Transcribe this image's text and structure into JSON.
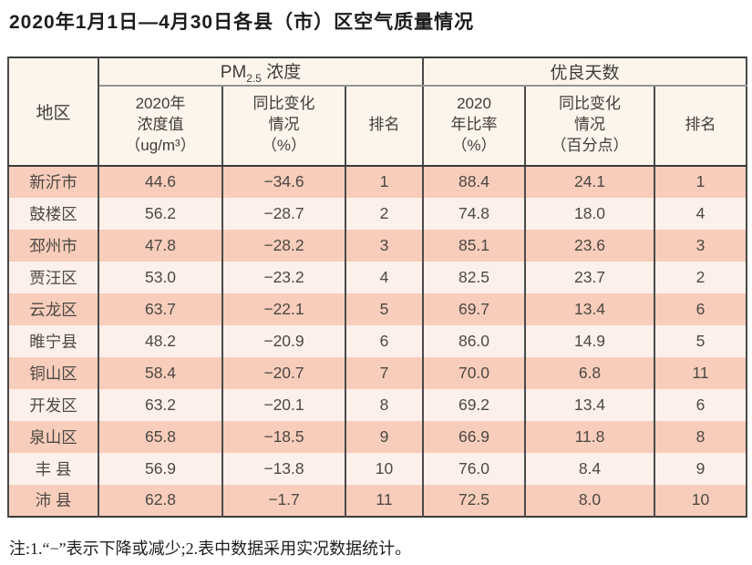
{
  "page": {
    "title": "2020年1月1日—4月30日各县（市）区空气质量情况",
    "note": "注:1.“−”表示下降或减少;2.表中数据采用实况数据统计。"
  },
  "colors": {
    "row_salmon": "#f8cdbb",
    "row_light": "#fdf0eb",
    "header_bg": "#fdf5ec",
    "border_dark": "#3a3a3a",
    "border_gray": "#949494",
    "text_main": "#4c4844"
  },
  "table": {
    "header": {
      "region": "地区",
      "pm_group": {
        "base": "PM",
        "sub": "2.5",
        "rest": " 浓度"
      },
      "good_group": "优良天数",
      "sub_headers": {
        "pm_value": "2020年\n浓度值\n（ug/m³）",
        "pm_change": "同比变化\n情况\n（%）",
        "pm_rank": "排名",
        "good_ratio": "2020\n年比率\n（%）",
        "good_change": "同比变化\n情况\n（百分点）",
        "good_rank": "排名"
      }
    },
    "rows": [
      {
        "region": "新沂市",
        "pm_value": "44.6",
        "pm_change": "−34.6",
        "pm_rank": "1",
        "good_ratio": "88.4",
        "good_change": "24.1",
        "good_rank": "1"
      },
      {
        "region": "鼓楼区",
        "pm_value": "56.2",
        "pm_change": "−28.7",
        "pm_rank": "2",
        "good_ratio": "74.8",
        "good_change": "18.0",
        "good_rank": "4"
      },
      {
        "region": "邳州市",
        "pm_value": "47.8",
        "pm_change": "−28.2",
        "pm_rank": "3",
        "good_ratio": "85.1",
        "good_change": "23.6",
        "good_rank": "3"
      },
      {
        "region": "贾汪区",
        "pm_value": "53.0",
        "pm_change": "−23.2",
        "pm_rank": "4",
        "good_ratio": "82.5",
        "good_change": "23.7",
        "good_rank": "2"
      },
      {
        "region": "云龙区",
        "pm_value": "63.7",
        "pm_change": "−22.1",
        "pm_rank": "5",
        "good_ratio": "69.7",
        "good_change": "13.4",
        "good_rank": "6"
      },
      {
        "region": "睢宁县",
        "pm_value": "48.2",
        "pm_change": "−20.9",
        "pm_rank": "6",
        "good_ratio": "86.0",
        "good_change": "14.9",
        "good_rank": "5"
      },
      {
        "region": "铜山区",
        "pm_value": "58.4",
        "pm_change": "−20.7",
        "pm_rank": "7",
        "good_ratio": "70.0",
        "good_change": "6.8",
        "good_rank": "11"
      },
      {
        "region": "开发区",
        "pm_value": "63.2",
        "pm_change": "−20.1",
        "pm_rank": "8",
        "good_ratio": "69.2",
        "good_change": "13.4",
        "good_rank": "6"
      },
      {
        "region": "泉山区",
        "pm_value": "65.8",
        "pm_change": "−18.5",
        "pm_rank": "9",
        "good_ratio": "66.9",
        "good_change": "11.8",
        "good_rank": "8"
      },
      {
        "region": "丰 县",
        "pm_value": "56.9",
        "pm_change": "−13.8",
        "pm_rank": "10",
        "good_ratio": "76.0",
        "good_change": "8.4",
        "good_rank": "9"
      },
      {
        "region": "沛 县",
        "pm_value": "62.8",
        "pm_change": "−1.7",
        "pm_rank": "11",
        "good_ratio": "72.5",
        "good_change": "8.0",
        "good_rank": "10"
      }
    ]
  }
}
